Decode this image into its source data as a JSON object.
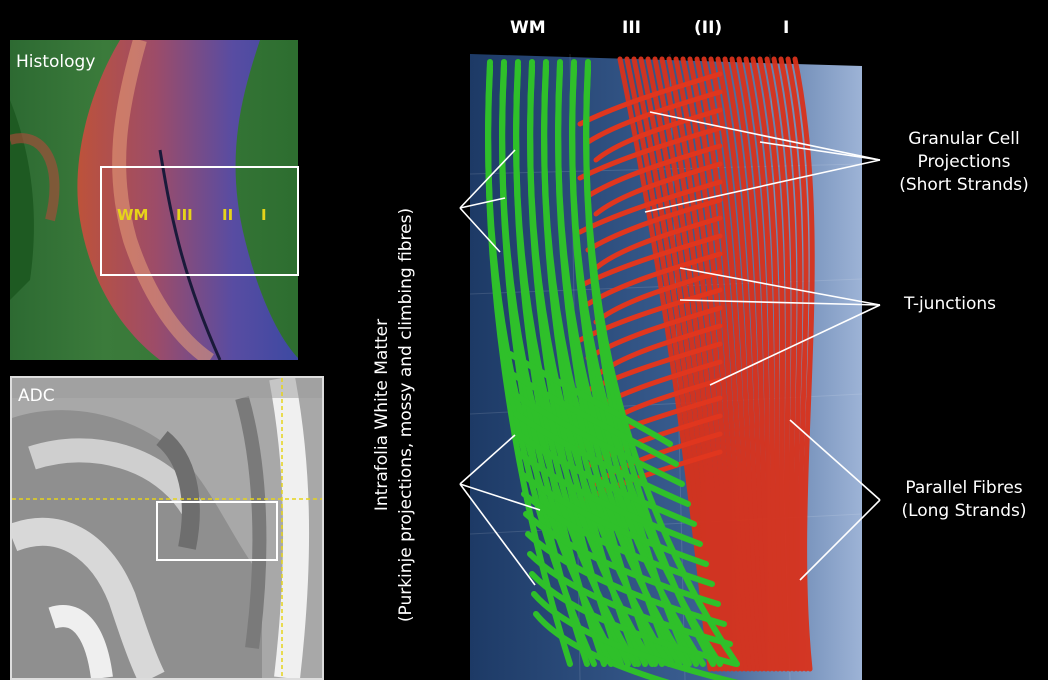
{
  "histology": {
    "title": "Histology",
    "layers": {
      "wm": "WM",
      "iii": "III",
      "ii": "II",
      "i": "I"
    }
  },
  "adc": {
    "title": "ADC"
  },
  "tractography": {
    "headers": {
      "wm": "WM",
      "iii": "III",
      "ii": "(II)",
      "i": "I"
    },
    "left_label": {
      "line1": "Intrafolia White Matter",
      "line2": "(Purkinje projections, mossy and climbing fibres)"
    },
    "annotations": {
      "granular": {
        "line1": "Granular Cell",
        "line2": "Projections",
        "line3": "(Short Strands)"
      },
      "tjunctions": "T-junctions",
      "parallel": {
        "line1": "Parallel Fibres",
        "line2": "(Long Strands)"
      }
    }
  },
  "colors": {
    "green_fibres": "#2fc02a",
    "red_fibres": "#d8321c",
    "background_blue": "#2e4f7e",
    "highlight_yellow": "#e6d41a"
  }
}
